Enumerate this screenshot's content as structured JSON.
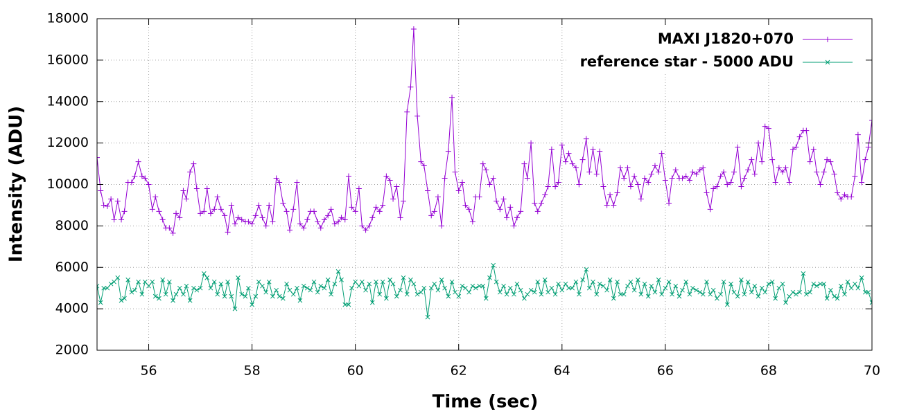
{
  "chart_data": {
    "type": "line",
    "xlabel": "Time (sec)",
    "ylabel": "Intensity (ADU)",
    "xlim": [
      55,
      70
    ],
    "xticks": [
      56,
      58,
      60,
      62,
      64,
      66,
      68,
      70
    ],
    "ylim": [
      2000,
      18000
    ],
    "yticks": [
      2000,
      4000,
      6000,
      8000,
      10000,
      12000,
      14000,
      16000,
      18000
    ],
    "grid": true,
    "legend": "top right",
    "x": [
      55,
      55.07,
      55.13,
      55.2,
      55.27,
      55.33,
      55.4,
      55.47,
      55.53,
      55.6,
      55.67,
      55.73,
      55.8,
      55.87,
      55.93,
      56,
      56.07,
      56.13,
      56.2,
      56.27,
      56.33,
      56.4,
      56.47,
      56.53,
      56.6,
      56.67,
      56.73,
      56.8,
      56.87,
      56.93,
      57,
      57.07,
      57.13,
      57.2,
      57.27,
      57.33,
      57.4,
      57.47,
      57.53,
      57.6,
      57.67,
      57.73,
      57.8,
      57.87,
      57.93,
      58,
      58.07,
      58.13,
      58.2,
      58.27,
      58.33,
      58.4,
      58.47,
      58.53,
      58.6,
      58.67,
      58.73,
      58.8,
      58.87,
      58.93,
      59,
      59.07,
      59.13,
      59.2,
      59.27,
      59.33,
      59.4,
      59.47,
      59.53,
      59.6,
      59.67,
      59.73,
      59.8,
      59.87,
      59.93,
      60,
      60.07,
      60.13,
      60.2,
      60.27,
      60.33,
      60.4,
      60.47,
      60.53,
      60.6,
      60.67,
      60.73,
      60.8,
      60.87,
      60.93,
      61,
      61.07,
      61.13,
      61.2,
      61.27,
      61.33,
      61.4,
      61.47,
      61.53,
      61.6,
      61.67,
      61.73,
      61.8,
      61.87,
      61.93,
      62,
      62.07,
      62.13,
      62.2,
      62.27,
      62.33,
      62.4,
      62.47,
      62.53,
      62.6,
      62.67,
      62.73,
      62.8,
      62.87,
      62.93,
      63,
      63.07,
      63.13,
      63.2,
      63.27,
      63.33,
      63.4,
      63.47,
      63.53,
      63.6,
      63.67,
      63.73,
      63.8,
      63.87,
      63.93,
      64,
      64.07,
      64.13,
      64.2,
      64.27,
      64.33,
      64.4,
      64.47,
      64.53,
      64.6,
      64.67,
      64.73,
      64.8,
      64.87,
      64.93,
      65,
      65.07,
      65.13,
      65.2,
      65.27,
      65.33,
      65.4,
      65.47,
      65.53,
      65.6,
      65.67,
      65.73,
      65.8,
      65.87,
      65.93,
      66,
      66.07,
      66.13,
      66.2,
      66.27,
      66.33,
      66.4,
      66.47,
      66.53,
      66.6,
      66.67,
      66.73,
      66.8,
      66.87,
      66.93,
      67,
      67.07,
      67.13,
      67.2,
      67.27,
      67.33,
      67.4,
      67.47,
      67.53,
      67.6,
      67.67,
      67.73,
      67.8,
      67.87,
      67.93,
      68,
      68.07,
      68.13,
      68.2,
      68.27,
      68.33,
      68.4,
      68.47,
      68.53,
      68.6,
      68.67,
      68.73,
      68.8,
      68.87,
      68.93,
      69,
      69.07,
      69.13,
      69.2,
      69.27,
      69.33,
      69.4,
      69.47,
      69.53,
      69.6,
      69.67,
      69.73,
      69.8,
      69.87,
      69.93,
      70
    ],
    "series": [
      {
        "name": "MAXI J1820+070",
        "color": "#9400d3",
        "marker": "plus",
        "values": [
          11300,
          9700,
          9000,
          8950,
          9300,
          8300,
          9200,
          8300,
          8700,
          10100,
          10100,
          10400,
          11100,
          10400,
          10300,
          10000,
          8800,
          9400,
          8700,
          8300,
          7900,
          7900,
          7650,
          8600,
          8400,
          9700,
          9300,
          10600,
          11000,
          9800,
          8600,
          8700,
          9800,
          8600,
          8800,
          9400,
          8800,
          8500,
          7700,
          9000,
          8100,
          8400,
          8300,
          8200,
          8200,
          8100,
          8500,
          9000,
          8400,
          8000,
          9000,
          8200,
          10300,
          10100,
          9100,
          8700,
          7800,
          8800,
          10100,
          8100,
          7900,
          8300,
          8700,
          8700,
          8200,
          7900,
          8300,
          8500,
          8800,
          8100,
          8200,
          8400,
          8300,
          10400,
          8900,
          8700,
          9800,
          8000,
          7800,
          8000,
          8400,
          8900,
          8700,
          9000,
          10400,
          10200,
          9300,
          9900,
          8400,
          9200,
          13500,
          14700,
          17500,
          13300,
          11100,
          10900,
          9700,
          8500,
          8700,
          9400,
          8000,
          10300,
          11600,
          14200,
          10600,
          9700,
          10100,
          9000,
          8800,
          8200,
          9400,
          9400,
          11000,
          10700,
          10000,
          10300,
          9200,
          8800,
          9300,
          8400,
          8900,
          8000,
          8400,
          8700,
          11000,
          10300,
          12000,
          9100,
          8700,
          9100,
          9500,
          9900,
          11700,
          9900,
          10100,
          11900,
          11100,
          11500,
          11000,
          10800,
          10000,
          11200,
          12200,
          10600,
          11700,
          10500,
          11600,
          9900,
          9000,
          9500,
          9000,
          9600,
          10800,
          10300,
          10800,
          9900,
          10400,
          10000,
          9300,
          10300,
          10100,
          10500,
          10900,
          10600,
          11500,
          10200,
          9100,
          10300,
          10700,
          10300,
          10300,
          10400,
          10200,
          10600,
          10500,
          10700,
          10800,
          9600,
          8800,
          9800,
          9900,
          10400,
          10600,
          10000,
          10100,
          10600,
          11800,
          9900,
          10300,
          10700,
          11200,
          10500,
          12000,
          11100,
          12800,
          12700,
          11200,
          10100,
          10800,
          10600,
          10800,
          10100,
          11700,
          11800,
          12300,
          12600,
          12600,
          11100,
          11700,
          10600,
          10000,
          10600,
          11200,
          11100,
          10500,
          9600,
          9300,
          9500,
          9400,
          9400,
          10400,
          12400,
          10100,
          11200,
          11800,
          13100
        ]
      },
      {
        "name": "reference star - 5000 ADU",
        "color": "#009e73",
        "marker": "cross",
        "values": [
          5100,
          4300,
          5000,
          5000,
          5200,
          5300,
          5500,
          4400,
          4500,
          5400,
          4800,
          4900,
          5300,
          4700,
          5300,
          5100,
          5300,
          4600,
          4500,
          5400,
          4700,
          5300,
          4400,
          4700,
          5000,
          4700,
          5100,
          4400,
          5000,
          4900,
          5000,
          5700,
          5500,
          5000,
          5300,
          4700,
          5200,
          4600,
          5300,
          4600,
          4000,
          5500,
          4700,
          4600,
          5000,
          4200,
          4600,
          5300,
          5100,
          4800,
          5300,
          4600,
          4900,
          4600,
          4500,
          5200,
          4900,
          4700,
          5000,
          4400,
          5100,
          5000,
          4900,
          5300,
          4800,
          5100,
          5000,
          5400,
          4700,
          5200,
          5800,
          5400,
          4200,
          4200,
          5000,
          5300,
          5100,
          5300,
          4900,
          5200,
          4300,
          5300,
          4700,
          5300,
          4500,
          5400,
          5200,
          4600,
          4900,
          5500,
          4700,
          5400,
          5200,
          4700,
          4800,
          5000,
          3600,
          5000,
          5200,
          4900,
          5400,
          5000,
          4600,
          5300,
          4800,
          4600,
          5100,
          5000,
          4800,
          5100,
          5000,
          5100,
          5100,
          4500,
          5500,
          6100,
          5300,
          4800,
          5100,
          4700,
          5000,
          4700,
          5200,
          4900,
          4500,
          4700,
          4900,
          4800,
          5300,
          4700,
          5400,
          4800,
          5000,
          4700,
          5200,
          4900,
          5200,
          5000,
          5000,
          5300,
          4700,
          5400,
          5900,
          5000,
          5300,
          4700,
          5200,
          5100,
          4900,
          5400,
          4500,
          5300,
          4700,
          4700,
          5100,
          5300,
          4900,
          5400,
          4700,
          5200,
          4600,
          5100,
          4800,
          5400,
          4700,
          5000,
          5300,
          4700,
          5100,
          4600,
          4900,
          5300,
          4700,
          5000,
          4900,
          4800,
          4700,
          5300,
          4700,
          4900,
          4500,
          4700,
          5300,
          4200,
          5200,
          4800,
          4600,
          5400,
          4700,
          5300,
          4800,
          5100,
          4600,
          5000,
          4800,
          5200,
          5300,
          4500,
          5000,
          5200,
          4300,
          4600,
          4800,
          4700,
          4800,
          5700,
          4700,
          4800,
          5200,
          5100,
          5200,
          5200,
          4500,
          4900,
          4600,
          4500,
          5100,
          4700,
          5300,
          5000,
          5200,
          5000,
          5500,
          4800,
          4800,
          4300
        ]
      }
    ]
  }
}
